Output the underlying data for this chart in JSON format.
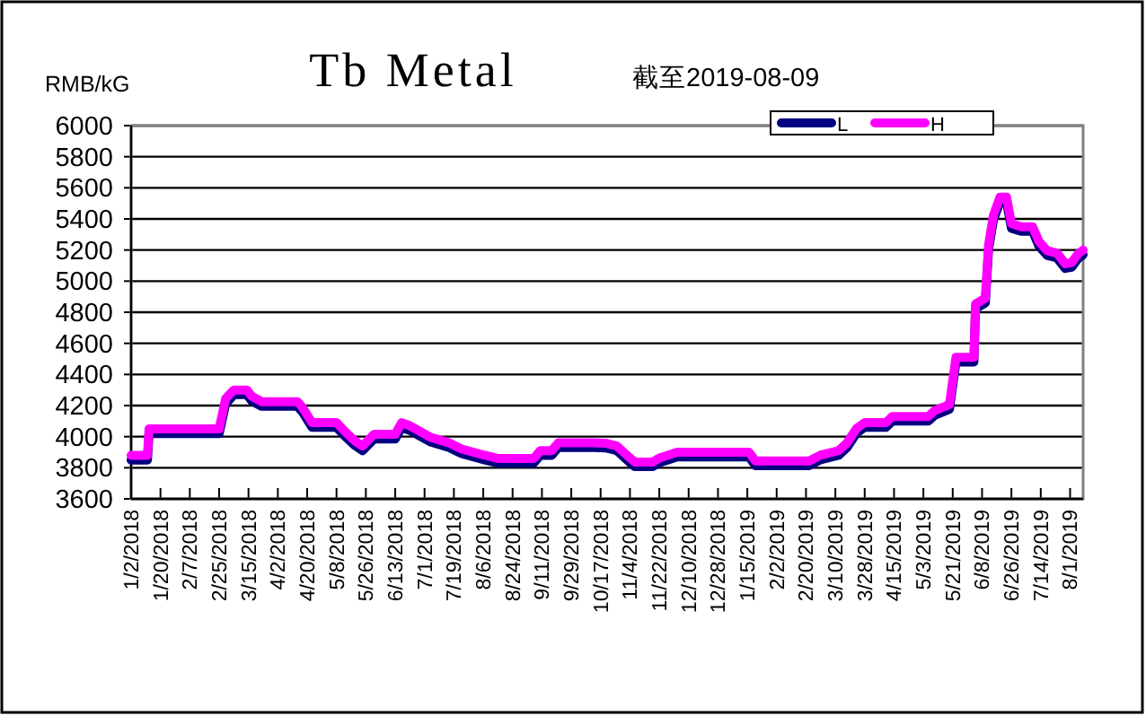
{
  "chart_data": {
    "type": "line",
    "title": "Tb Metal",
    "subtitle": "截至2019-08-09",
    "ylabel": "RMB/kG",
    "x": [
      "2018-01-02",
      "2018-01-12",
      "2018-01-13",
      "2018-02-25",
      "2018-03-01",
      "2018-03-06",
      "2018-03-14",
      "2018-03-17",
      "2018-03-23",
      "2018-04-14",
      "2018-04-17",
      "2018-04-23",
      "2018-05-08",
      "2018-05-13",
      "2018-05-19",
      "2018-05-24",
      "2018-05-31",
      "2018-06-13",
      "2018-06-17",
      "2018-06-22",
      "2018-06-28",
      "2018-07-05",
      "2018-07-16",
      "2018-07-24",
      "2018-08-07",
      "2018-08-15",
      "2018-09-06",
      "2018-09-10",
      "2018-09-17",
      "2018-09-21",
      "2018-10-13",
      "2018-10-20",
      "2018-10-27",
      "2018-11-04",
      "2018-11-07",
      "2018-11-18",
      "2018-11-22",
      "2018-12-03",
      "2019-01-16",
      "2019-01-20",
      "2019-02-22",
      "2019-03-01",
      "2019-03-12",
      "2019-03-17",
      "2019-03-23",
      "2019-03-28",
      "2019-04-10",
      "2019-04-14",
      "2019-05-06",
      "2019-05-10",
      "2019-05-19",
      "2019-05-23",
      "2019-06-03",
      "2019-06-04",
      "2019-06-10",
      "2019-06-12",
      "2019-06-15",
      "2019-06-19",
      "2019-06-23",
      "2019-06-26",
      "2019-07-02",
      "2019-07-09",
      "2019-07-13",
      "2019-07-18",
      "2019-07-24",
      "2019-07-29",
      "2019-08-02",
      "2019-08-06",
      "2019-08-09"
    ],
    "series": [
      {
        "name": "L",
        "color": "#000080",
        "values": [
          3850,
          3850,
          4020,
          4020,
          4210,
          4270,
          4270,
          4230,
          4195,
          4195,
          4160,
          4060,
          4060,
          4005,
          3945,
          3910,
          3985,
          3985,
          4060,
          4040,
          4005,
          3965,
          3930,
          3890,
          3850,
          3830,
          3830,
          3880,
          3880,
          3930,
          3930,
          3928,
          3910,
          3833,
          3807,
          3807,
          3833,
          3870,
          3870,
          3814,
          3814,
          3852,
          3880,
          3928,
          4023,
          4060,
          4060,
          4100,
          4100,
          4138,
          4176,
          4480,
          4480,
          4823,
          4860,
          5204,
          5395,
          5510,
          5510,
          5340,
          5320,
          5320,
          5223,
          5166,
          5150,
          5082,
          5090,
          5147,
          5170
        ]
      },
      {
        "name": "H",
        "color": "#ff00ff",
        "values": [
          3880,
          3880,
          4050,
          4050,
          4245,
          4300,
          4300,
          4260,
          4225,
          4225,
          4190,
          4090,
          4090,
          4035,
          3975,
          3940,
          4015,
          4015,
          4090,
          4070,
          4035,
          3995,
          3960,
          3920,
          3880,
          3860,
          3860,
          3910,
          3910,
          3960,
          3960,
          3958,
          3940,
          3863,
          3837,
          3837,
          3863,
          3900,
          3900,
          3844,
          3844,
          3882,
          3910,
          3958,
          4053,
          4090,
          4090,
          4130,
          4130,
          4168,
          4206,
          4510,
          4510,
          4853,
          4890,
          5234,
          5425,
          5540,
          5540,
          5370,
          5350,
          5350,
          5253,
          5196,
          5180,
          5112,
          5120,
          5177,
          5200
        ]
      }
    ],
    "xlim": [
      "2018-01-02",
      "2019-08-09"
    ],
    "xticks": [
      {
        "value": "2018-01-02",
        "label": "1/2/2018"
      },
      {
        "value": "2018-01-20",
        "label": "1/20/2018"
      },
      {
        "value": "2018-02-07",
        "label": "2/7/2018"
      },
      {
        "value": "2018-02-25",
        "label": "2/25/2018"
      },
      {
        "value": "2018-03-15",
        "label": "3/15/2018"
      },
      {
        "value": "2018-04-02",
        "label": "4/2/2018"
      },
      {
        "value": "2018-04-20",
        "label": "4/20/2018"
      },
      {
        "value": "2018-05-08",
        "label": "5/8/2018"
      },
      {
        "value": "2018-05-26",
        "label": "5/26/2018"
      },
      {
        "value": "2018-06-13",
        "label": "6/13/2018"
      },
      {
        "value": "2018-07-01",
        "label": "7/1/2018"
      },
      {
        "value": "2018-07-19",
        "label": "7/19/2018"
      },
      {
        "value": "2018-08-06",
        "label": "8/6/2018"
      },
      {
        "value": "2018-08-24",
        "label": "8/24/2018"
      },
      {
        "value": "2018-09-11",
        "label": "9/11/2018"
      },
      {
        "value": "2018-09-29",
        "label": "9/29/2018"
      },
      {
        "value": "2018-10-17",
        "label": "10/17/2018"
      },
      {
        "value": "2018-11-04",
        "label": "11/4/2018"
      },
      {
        "value": "2018-11-22",
        "label": "11/22/2018"
      },
      {
        "value": "2018-12-10",
        "label": "12/10/2018"
      },
      {
        "value": "2018-12-28",
        "label": "12/28/2018"
      },
      {
        "value": "2019-01-15",
        "label": "1/15/2019"
      },
      {
        "value": "2019-02-02",
        "label": "2/2/2019"
      },
      {
        "value": "2019-02-20",
        "label": "2/20/2019"
      },
      {
        "value": "2019-03-10",
        "label": "3/10/2019"
      },
      {
        "value": "2019-03-28",
        "label": "3/28/2019"
      },
      {
        "value": "2019-04-15",
        "label": "4/15/2019"
      },
      {
        "value": "2019-05-03",
        "label": "5/3/2019"
      },
      {
        "value": "2019-05-21",
        "label": "5/21/2019"
      },
      {
        "value": "2019-06-08",
        "label": "6/8/2019"
      },
      {
        "value": "2019-06-26",
        "label": "6/26/2019"
      },
      {
        "value": "2019-07-14",
        "label": "7/14/2019"
      },
      {
        "value": "2019-08-01",
        "label": "8/1/2019"
      }
    ],
    "ylim": [
      3600,
      6000
    ],
    "yticks": [
      3600,
      3800,
      4000,
      4200,
      4400,
      4600,
      4800,
      5000,
      5200,
      5400,
      5600,
      5800,
      6000
    ],
    "grid": "y",
    "legend": "top right",
    "marker": "none",
    "line_style": "solid"
  }
}
